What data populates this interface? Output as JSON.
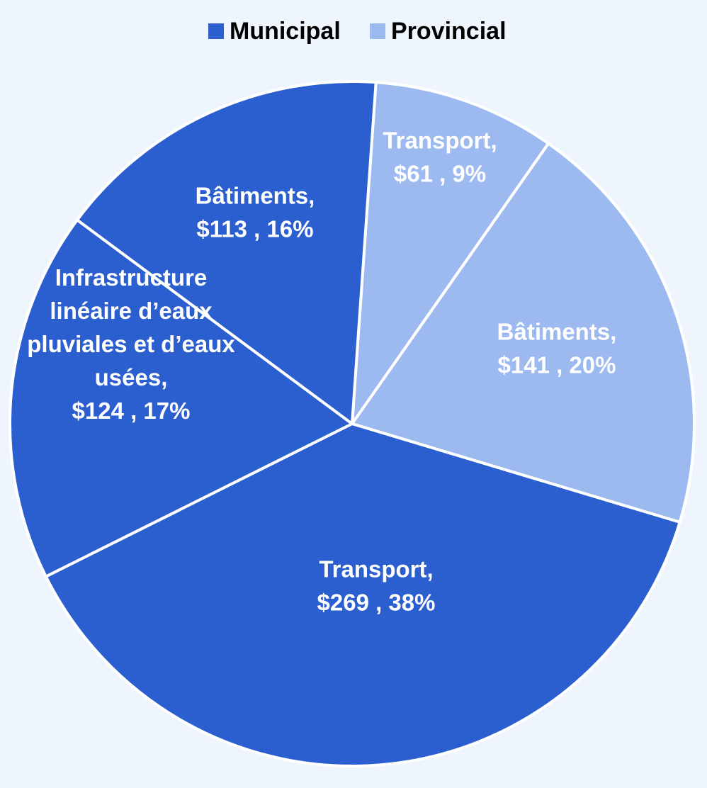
{
  "chart_data": {
    "type": "pie",
    "legend_position": "top",
    "groups": [
      {
        "name": "Municipal",
        "color": "#2B5ECF"
      },
      {
        "name": "Provincial",
        "color": "#9DBAF0"
      }
    ],
    "slices": [
      {
        "group": "Provincial",
        "value": 61,
        "percent": 9,
        "label_lines": [
          "Transport,",
          "$61 , 9%"
        ]
      },
      {
        "group": "Provincial",
        "value": 141,
        "percent": 20,
        "label_lines": [
          "Bâtiments,",
          "$141 , 20%"
        ]
      },
      {
        "group": "Municipal",
        "value": 269,
        "percent": 38,
        "label_lines": [
          "Transport,",
          "$269 , 38%"
        ]
      },
      {
        "group": "Municipal",
        "value": 124,
        "percent": 17,
        "label_lines": [
          "Infrastructure",
          "linéaire d’eaux",
          "pluviales et d’eaux",
          "usées,",
          "$124 , 17%"
        ]
      },
      {
        "group": "Municipal",
        "value": 113,
        "percent": 16,
        "label_lines": [
          "Bâtiments,",
          "$113 , 16%"
        ]
      }
    ]
  }
}
